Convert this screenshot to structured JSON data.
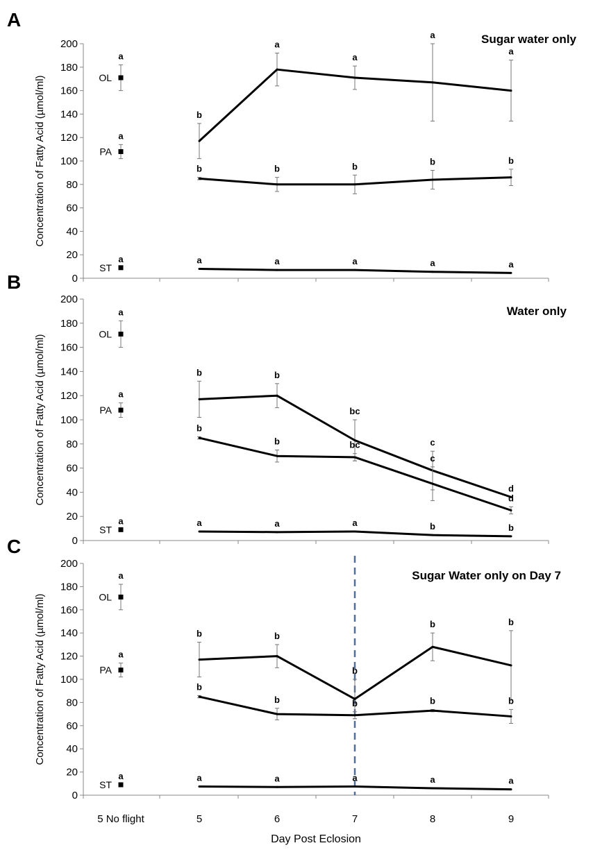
{
  "chart_data": [
    {
      "type": "line",
      "panel_label": "A",
      "title": "Sugar water only",
      "ylabel": "Concentration of Fatty Acid (µmol/ml)",
      "ylim": [
        0,
        200
      ],
      "yticks": [
        "0",
        "20",
        "40",
        "60",
        "80",
        "100",
        "120",
        "140",
        "160",
        "180",
        "200"
      ],
      "controls": [
        {
          "name": "OL",
          "value": 171,
          "err": 11,
          "sig": "a"
        },
        {
          "name": "PA",
          "value": 108,
          "err": 6,
          "sig": "a"
        },
        {
          "name": "ST",
          "value": 9,
          "err": 0,
          "sig": "a"
        }
      ],
      "series": [
        {
          "name": "OL",
          "x": [
            5,
            6,
            7,
            8,
            9
          ],
          "values": [
            117,
            178,
            171,
            167,
            160
          ],
          "err": [
            15,
            14,
            10,
            33,
            26
          ],
          "sig": [
            "b",
            "a",
            "a",
            "a",
            "a"
          ]
        },
        {
          "name": "PA",
          "x": [
            5,
            6,
            7,
            8,
            9
          ],
          "values": [
            85,
            80,
            80,
            84,
            86
          ],
          "err": [
            1,
            6,
            8,
            8,
            7
          ],
          "sig": [
            "b",
            "b",
            "b",
            "b",
            "b"
          ]
        },
        {
          "name": "ST",
          "x": [
            5,
            6,
            7,
            8,
            9
          ],
          "values": [
            8,
            7,
            7,
            5.5,
            4.5
          ],
          "err": [
            0,
            0,
            0,
            0,
            0
          ],
          "sig": [
            "a",
            "a",
            "a",
            "a",
            "a"
          ]
        }
      ]
    },
    {
      "type": "line",
      "panel_label": "B",
      "title": "Water only",
      "ylabel": "Concentration of Fatty Acid (µmol/ml)",
      "ylim": [
        0,
        200
      ],
      "yticks": [
        "0",
        "20",
        "40",
        "60",
        "80",
        "100",
        "120",
        "140",
        "160",
        "180",
        "200"
      ],
      "controls": [
        {
          "name": "OL",
          "value": 171,
          "err": 11,
          "sig": "a"
        },
        {
          "name": "PA",
          "value": 108,
          "err": 6,
          "sig": "a"
        },
        {
          "name": "ST",
          "value": 9,
          "err": 0,
          "sig": "a"
        }
      ],
      "series": [
        {
          "name": "OL",
          "x": [
            5,
            6,
            7,
            8,
            9
          ],
          "values": [
            117,
            120,
            83,
            58,
            36
          ],
          "err": [
            15,
            10,
            17,
            16,
            0
          ],
          "sig": [
            "b",
            "b",
            "bc",
            "c",
            "d"
          ]
        },
        {
          "name": "PA",
          "x": [
            5,
            6,
            7,
            8,
            9
          ],
          "values": [
            85,
            70,
            69,
            47,
            25
          ],
          "err": [
            1,
            5,
            3,
            14,
            3
          ],
          "sig": [
            "b",
            "b",
            "bc",
            "c",
            "d"
          ]
        },
        {
          "name": "ST",
          "x": [
            5,
            6,
            7,
            8,
            9
          ],
          "values": [
            7.5,
            7,
            7.5,
            4.5,
            3.5
          ],
          "err": [
            0,
            0,
            0,
            0,
            0
          ],
          "sig": [
            "a",
            "a",
            "a",
            "b",
            "b"
          ]
        }
      ]
    },
    {
      "type": "line",
      "panel_label": "C",
      "title": "Sugar Water only on Day 7",
      "ylabel": "Concentration of Fatty Acid (µmol/ml)",
      "ylim": [
        0,
        200
      ],
      "yticks": [
        "0",
        "20",
        "40",
        "60",
        "80",
        "100",
        "120",
        "140",
        "160",
        "180",
        "200"
      ],
      "vline_x": 7,
      "controls": [
        {
          "name": "OL",
          "value": 171,
          "err": 11,
          "sig": "a"
        },
        {
          "name": "PA",
          "value": 108,
          "err": 6,
          "sig": "a"
        },
        {
          "name": "ST",
          "value": 9,
          "err": 0,
          "sig": "a"
        }
      ],
      "series": [
        {
          "name": "OL",
          "x": [
            5,
            6,
            7,
            8,
            9
          ],
          "values": [
            117,
            120,
            83,
            128,
            112
          ],
          "err": [
            15,
            10,
            17,
            12,
            30
          ],
          "sig": [
            "b",
            "b",
            "b",
            "b",
            "b"
          ]
        },
        {
          "name": "PA",
          "x": [
            5,
            6,
            7,
            8,
            9
          ],
          "values": [
            85,
            70,
            69,
            73,
            68
          ],
          "err": [
            1,
            5,
            3,
            1,
            6
          ],
          "sig": [
            "b",
            "b",
            "b",
            "b",
            "b"
          ]
        },
        {
          "name": "ST",
          "x": [
            5,
            6,
            7,
            8,
            9
          ],
          "values": [
            7.5,
            7,
            7.5,
            6,
            5
          ],
          "err": [
            0,
            0,
            0,
            0,
            0
          ],
          "sig": [
            "a",
            "a",
            "a",
            "a",
            "a"
          ]
        }
      ]
    }
  ],
  "x_categories": [
    "5 No flight",
    "5",
    "6",
    "7",
    "8",
    "9"
  ],
  "xlabel": "Day Post Eclosion"
}
